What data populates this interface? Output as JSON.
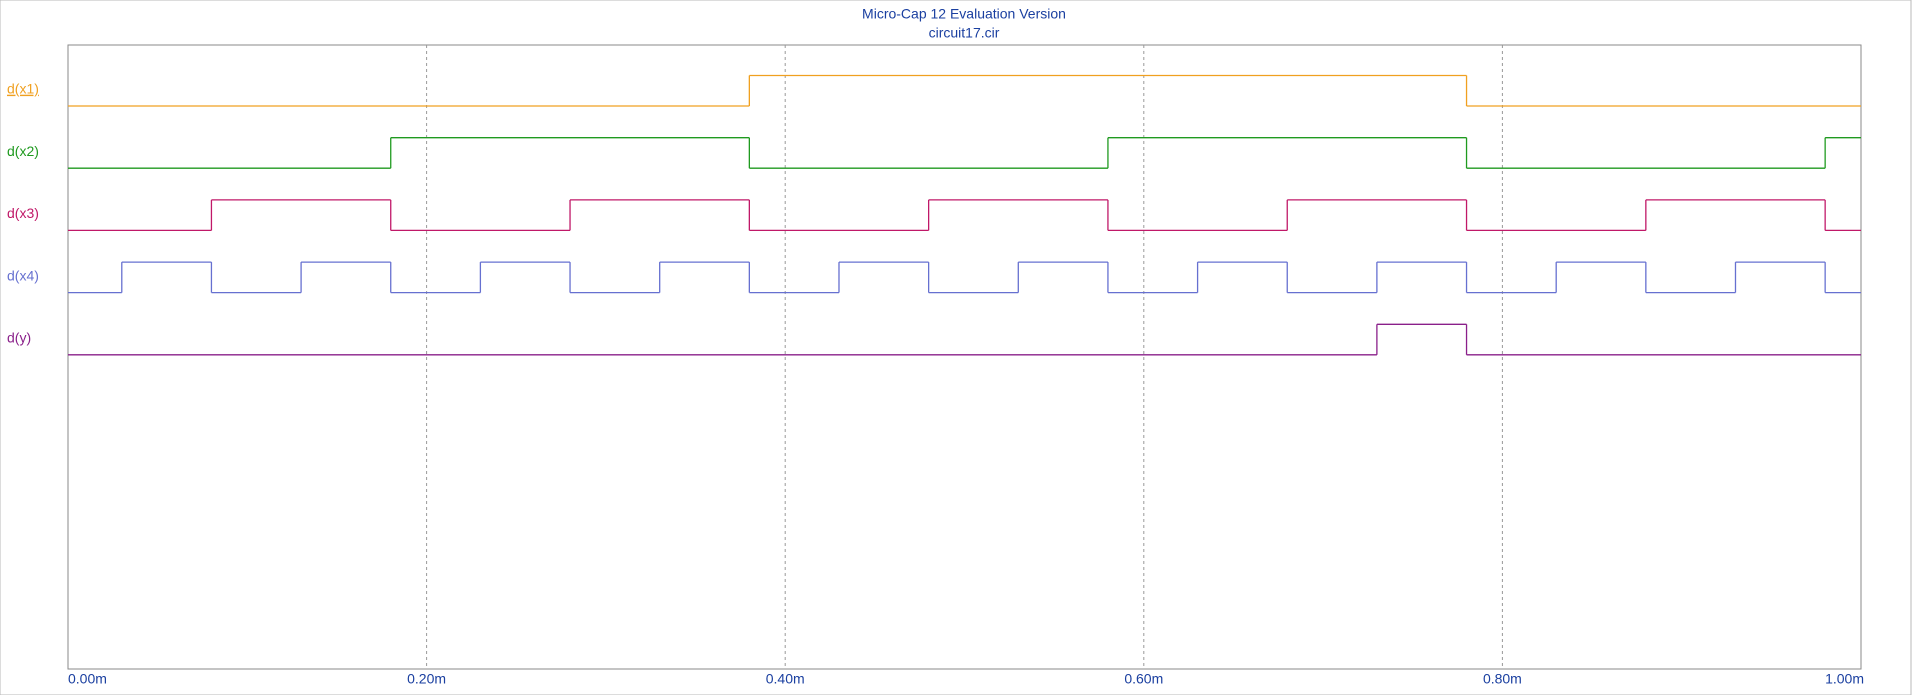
{
  "chart_data": {
    "type": "digital",
    "title": "Micro-Cap 12 Evaluation Version",
    "subtitle": "circuit17.cir",
    "xlim": [
      0,
      1
    ],
    "xticks": [
      {
        "value": 0,
        "label": "0.00m"
      },
      {
        "value": 0.2,
        "label": "0.20m"
      },
      {
        "value": 0.4,
        "label": "0.40m"
      },
      {
        "value": 0.6,
        "label": "0.60m"
      },
      {
        "value": 0.8,
        "label": "0.80m"
      },
      {
        "value": 1,
        "label": "1.00m"
      }
    ],
    "grid": true,
    "series": [
      {
        "name": "d(x1)",
        "color": "#f0a020",
        "x": [
          0,
          0.38,
          0.78
        ],
        "values": [
          0,
          1,
          0
        ]
      },
      {
        "name": "d(x2)",
        "color": "#1f9a1f",
        "x": [
          0,
          0.18,
          0.38,
          0.58,
          0.78,
          0.98
        ],
        "values": [
          0,
          1,
          0,
          1,
          0,
          1
        ]
      },
      {
        "name": "d(x3)",
        "color": "#c01868",
        "x": [
          0,
          0.08,
          0.18,
          0.28,
          0.38,
          0.48,
          0.58,
          0.68,
          0.78,
          0.88,
          0.98
        ],
        "values": [
          0,
          1,
          0,
          1,
          0,
          1,
          0,
          1,
          0,
          1,
          0
        ]
      },
      {
        "name": "d(x4)",
        "color": "#6670d0",
        "x": [
          0,
          0.03,
          0.08,
          0.13,
          0.18,
          0.23,
          0.28,
          0.33,
          0.38,
          0.43,
          0.48,
          0.53,
          0.58,
          0.63,
          0.68,
          0.73,
          0.78,
          0.83,
          0.88,
          0.93,
          0.98
        ],
        "values": [
          0,
          1,
          0,
          1,
          0,
          1,
          0,
          1,
          0,
          1,
          0,
          1,
          0,
          1,
          0,
          1,
          0,
          1,
          0,
          1,
          0
        ]
      },
      {
        "name": "d(y)",
        "color": "#8a1f8a",
        "x": [
          0,
          0.73,
          0.78
        ],
        "values": [
          0,
          1,
          0
        ]
      }
    ]
  }
}
